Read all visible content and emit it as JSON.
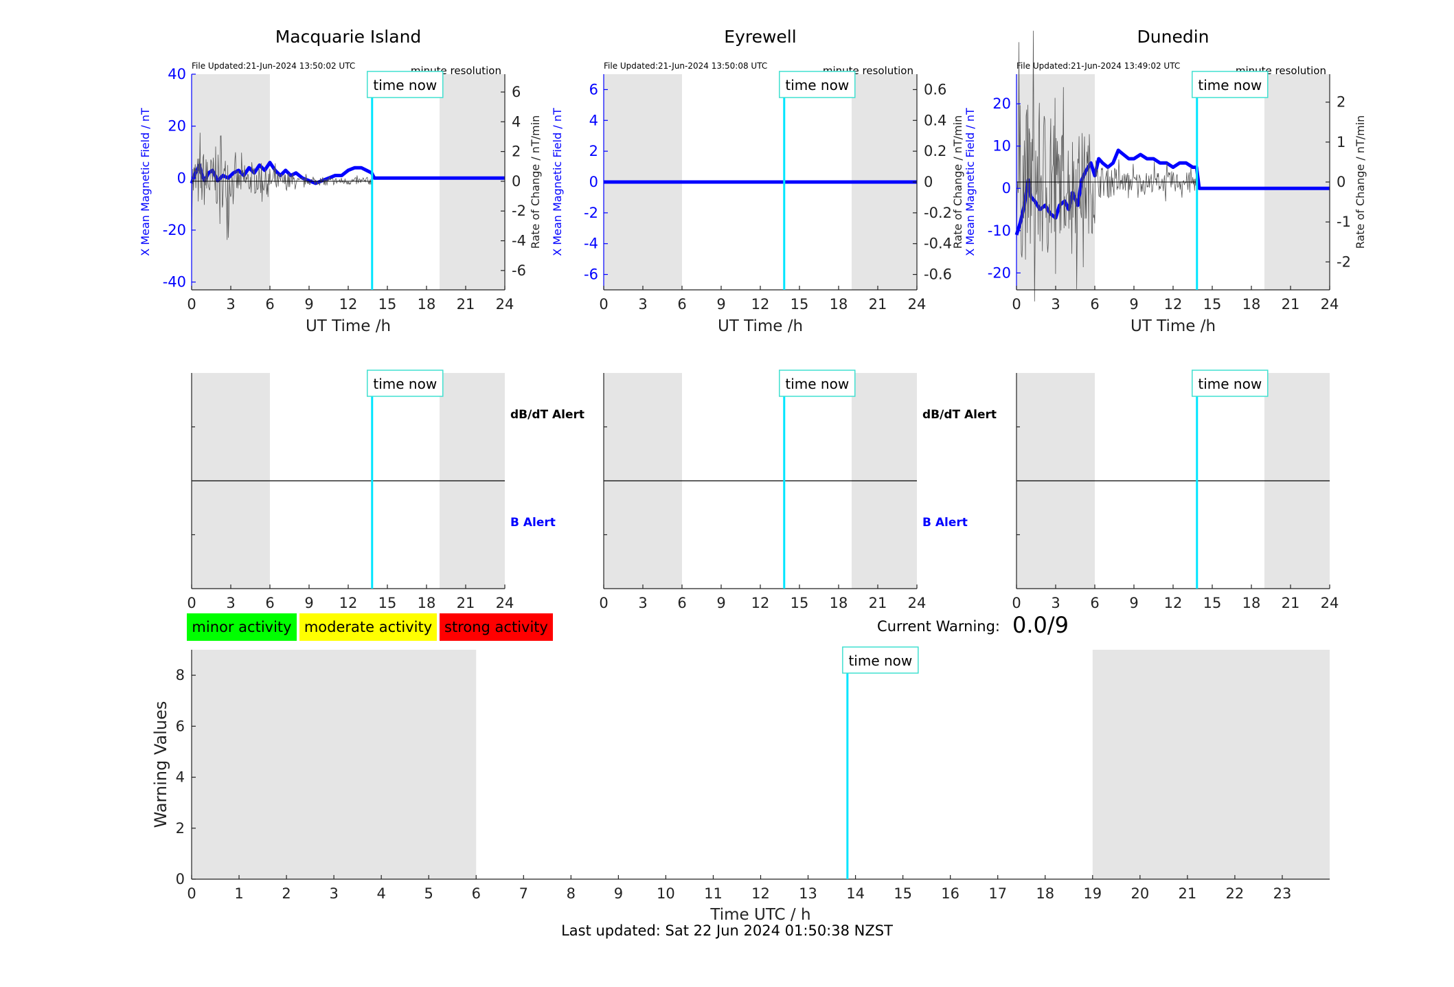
{
  "footer": {
    "last_updated": "Last updated: Sat 22 Jun 2024 01:50:38 NZST"
  },
  "time_now_label": "time now",
  "time_now_hour": 13.83,
  "night_shading": [
    [
      0,
      6
    ],
    [
      19,
      24
    ]
  ],
  "chart_data": [
    {
      "type": "line",
      "station": "Macquarie Island",
      "file_updated": "File Updated:21-Jun-2024 13:50:02 UTC",
      "resolution": "minute resolution",
      "xlabel": "UT Time /h",
      "ylabel_left": "X Mean Magnetic Field / nT",
      "ylabel_right": "Rate of Change / nT/min",
      "xlim": [
        0,
        24
      ],
      "xticks": [
        0,
        3,
        6,
        9,
        12,
        15,
        18,
        21,
        24
      ],
      "ylim_left": [
        -43,
        40
      ],
      "yticks_left": [
        -40,
        -20,
        0,
        20,
        40
      ],
      "ylim_right": [
        -7.3,
        7.2
      ],
      "yticks_right": [
        -6,
        -4,
        -2,
        0,
        2,
        4,
        6
      ],
      "series": [
        {
          "name": "",
          "color": "#0000ff",
          "axis": "left",
          "x": [
            0,
            0.2,
            0.4,
            0.6,
            0.8,
            1.0,
            1.3,
            1.6,
            2.0,
            2.4,
            2.8,
            3.2,
            3.6,
            4.0,
            4.4,
            4.8,
            5.2,
            5.6,
            6.0,
            6.4,
            6.8,
            7.2,
            7.6,
            8.0,
            8.5,
            9.0,
            9.5,
            10.0,
            10.5,
            11.0,
            11.5,
            12.0,
            12.5,
            13.0,
            13.4,
            13.8,
            14,
            24
          ],
          "y": [
            -2,
            1,
            3,
            5,
            1,
            -1,
            2,
            3,
            -1,
            1,
            0,
            2,
            3,
            1,
            4,
            2,
            5,
            3,
            6,
            3,
            1,
            3,
            1,
            2,
            0,
            -1,
            -2,
            -1,
            0,
            1,
            1,
            3,
            4,
            4,
            3,
            2,
            0,
            0
          ]
        },
        {
          "name": "",
          "color": "#555555",
          "axis": "right",
          "noisy": true,
          "x": [
            0,
            13.83
          ],
          "envelope": [
            1.8,
            0.9,
            0.6,
            0.25
          ]
        }
      ]
    },
    {
      "type": "line",
      "station": "Eyrewell",
      "file_updated": "File Updated:21-Jun-2024 13:50:08 UTC",
      "resolution": "minute resolution",
      "xlabel": "UT Time /h",
      "ylabel_left": "X Mean Magnetic Field / nT",
      "ylabel_right": "",
      "xlim": [
        0,
        24
      ],
      "xticks": [
        0,
        3,
        6,
        9,
        12,
        15,
        18,
        21,
        24
      ],
      "ylim_left": [
        -7,
        7
      ],
      "yticks_left": [
        -6,
        -4,
        -2,
        0,
        2,
        4,
        6
      ],
      "ylim_right": [
        -0.7,
        0.7
      ],
      "yticks_right": [
        -0.6,
        -0.4,
        -0.2,
        0,
        0.2,
        0.4,
        0.6
      ],
      "series": [
        {
          "name": "",
          "color": "#0000ff",
          "axis": "left",
          "x": [
            0,
            24
          ],
          "y": [
            0,
            0
          ]
        }
      ]
    },
    {
      "type": "line",
      "station": "Dunedin",
      "file_updated": "File Updated:21-Jun-2024 13:49:02 UTC",
      "resolution": "minute resolution",
      "xlabel": "UT Time /h",
      "ylabel_left": "X Mean Magnetic Field / nT",
      "ylabel_right": "Rate of Change / nT/min",
      "ylabel_left_extra": "Rate of Change / nT/min",
      "xlim": [
        0,
        24
      ],
      "xticks": [
        0,
        3,
        6,
        9,
        12,
        15,
        18,
        21,
        24
      ],
      "ylim_left": [
        -24,
        27
      ],
      "yticks_left": [
        -20,
        -10,
        0,
        10,
        20
      ],
      "ylim_right": [
        -2.7,
        2.7
      ],
      "yticks_right": [
        -2,
        -1,
        0,
        1,
        2
      ],
      "series": [
        {
          "name": "",
          "color": "#0000ff",
          "axis": "left",
          "x": [
            0,
            0.3,
            0.6,
            0.9,
            1.1,
            1.4,
            1.8,
            2.2,
            2.6,
            3.0,
            3.3,
            3.7,
            4.0,
            4.3,
            4.7,
            5.0,
            5.3,
            5.7,
            6.0,
            6.3,
            6.6,
            7.0,
            7.4,
            7.8,
            8.2,
            8.6,
            9.0,
            9.5,
            10.0,
            10.5,
            11.0,
            11.5,
            12.0,
            12.5,
            13.0,
            13.5,
            13.8,
            14,
            24
          ],
          "y": [
            -11,
            -8,
            -4,
            2,
            -2,
            -3,
            -5,
            -4,
            -6,
            -7,
            -4,
            -3,
            -5,
            -1,
            -4,
            2,
            4,
            6,
            3,
            7,
            6,
            5,
            6,
            9,
            8,
            7,
            7,
            8,
            7,
            7,
            6,
            6,
            5,
            6,
            6,
            5,
            5,
            0,
            0
          ]
        },
        {
          "name": "",
          "color": "#555555",
          "axis": "right",
          "noisy": true,
          "x": [
            0,
            13.83
          ],
          "envelope": [
            2.0,
            1.3,
            0.4,
            0.25
          ]
        }
      ]
    },
    {
      "type": "alert",
      "xticks": [
        0,
        3,
        6,
        9,
        12,
        15,
        18,
        21,
        24
      ],
      "dbdt_label": "dB/dT Alert",
      "b_label": "B Alert"
    },
    {
      "type": "alert",
      "xticks": [
        0,
        3,
        6,
        9,
        12,
        15,
        18,
        21,
        24
      ],
      "dbdt_label": "dB/dT Alert",
      "b_label": "B Alert"
    },
    {
      "type": "alert",
      "xticks": [
        0,
        3,
        6,
        9,
        12,
        15,
        18,
        21,
        24
      ],
      "dbdt_label": "",
      "b_label": ""
    },
    {
      "type": "bar",
      "xlabel": "Time UTC / h",
      "ylabel": "Warning Values",
      "xlim": [
        0,
        24
      ],
      "xticks": [
        0,
        1,
        2,
        3,
        4,
        5,
        6,
        7,
        8,
        9,
        10,
        11,
        12,
        13,
        14,
        15,
        16,
        17,
        18,
        19,
        20,
        21,
        22,
        23
      ],
      "ylim": [
        0,
        9
      ],
      "yticks": [
        0,
        2,
        4,
        6,
        8
      ],
      "values": []
    }
  ],
  "legend": [
    {
      "label": "minor activity",
      "color": "#00ff00"
    },
    {
      "label": "moderate activity",
      "color": "#ffff00"
    },
    {
      "label": "strong activity",
      "color": "#ff0000"
    }
  ],
  "current_warning": {
    "label": "Current Warning:",
    "value": "0.0/9"
  }
}
